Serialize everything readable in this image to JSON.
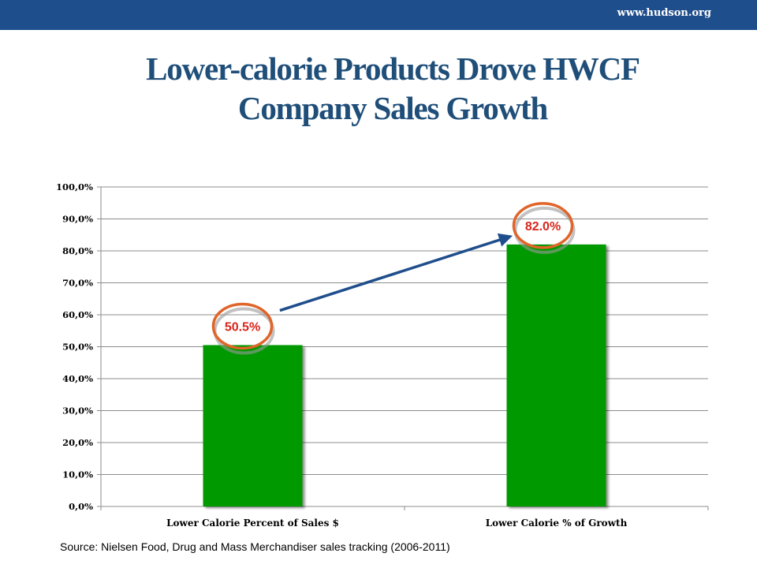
{
  "header": {
    "url": "www.hudson.org"
  },
  "title": {
    "line1": "Lower-calorie Products Drove HWCF",
    "line2": "Company Sales Growth"
  },
  "source": "Source: Nielsen Food, Drug and Mass Merchandiser sales tracking (2006-2011)",
  "colors": {
    "header_bar": "#1f4e8c",
    "title": "#1f4e79",
    "bar": "#009900",
    "highlight_circle": "#e0652a",
    "arrow": "#1f4e8c",
    "data_label": "#d9261c"
  },
  "chart_data": {
    "type": "bar",
    "categories": [
      "Lower Calorie Percent of Sales $",
      "Lower Calorie % of Growth"
    ],
    "values": [
      50.5,
      82.0
    ],
    "data_labels": [
      "50.5%",
      "82.0%"
    ],
    "ylim": [
      0,
      100
    ],
    "yticks": [
      0,
      10,
      20,
      30,
      40,
      50,
      60,
      70,
      80,
      90,
      100
    ],
    "ytick_labels": [
      "0,0%",
      "10,0%",
      "20,0%",
      "30,0%",
      "40,0%",
      "50,0%",
      "60,0%",
      "70,0%",
      "80,0%",
      "90,0%",
      "100,0%"
    ],
    "grid": true,
    "annotations": [
      {
        "type": "arrow",
        "from": "Lower Calorie Percent of Sales $",
        "to": "Lower Calorie % of Growth"
      }
    ]
  }
}
